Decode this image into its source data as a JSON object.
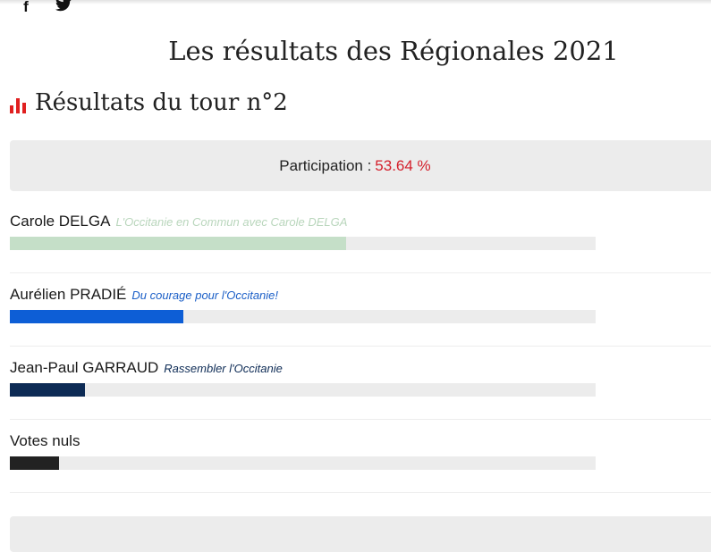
{
  "social": {
    "facebook_icon": "facebook-icon",
    "twitter_icon": "twitter-icon"
  },
  "title": "Les résultats des Régionales 2021",
  "section": {
    "title": "Résultats du tour n°2",
    "icon": "bar-chart-icon",
    "icon_color": "#e02020"
  },
  "participation": {
    "label": "Participation :",
    "value": "53.64 %",
    "value_color": "#d4202c"
  },
  "candidates": [
    {
      "name": "Carole DELGA",
      "party": "L'Occitanie en Commun avec Carole DELGA",
      "bar_fraction": 0.574,
      "color": "#c5dfc8",
      "party_color": "#b9d6bc"
    },
    {
      "name": "Aurélien PRADIÉ",
      "party": "Du courage pour l'Occitanie!",
      "bar_fraction": 0.296,
      "color": "#0d5ed6",
      "party_color": "#1b5fc7"
    },
    {
      "name": "Jean-Paul GARRAUD",
      "party": "Rassembler l'Occitanie",
      "bar_fraction": 0.128,
      "color": "#0d2b55",
      "party_color": "#0d2b55"
    },
    {
      "name": "Votes nuls",
      "party": "",
      "bar_fraction": 0.084,
      "color": "#222222",
      "party_color": "#222222"
    }
  ]
}
